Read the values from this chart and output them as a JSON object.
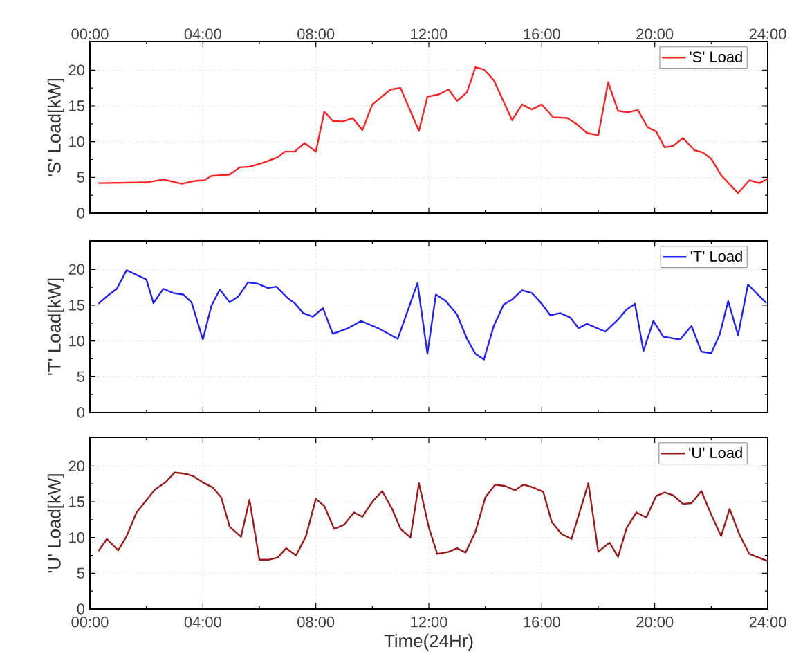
{
  "chart_data": [
    {
      "type": "line",
      "ylabel": "'S' Load[kW]",
      "legend": "top right",
      "grid": true,
      "tick_labels": "y",
      "xlim": [
        0,
        24
      ],
      "x2lim": [
        0,
        24
      ],
      "x2ticks": [
        {
          "value": 0,
          "label": "00:00"
        },
        {
          "value": 4,
          "label": "04:00"
        },
        {
          "value": 8,
          "label": "08:00"
        },
        {
          "value": 12,
          "label": "12:00"
        },
        {
          "value": 16,
          "label": "16:00"
        },
        {
          "value": 20,
          "label": "20:00"
        },
        {
          "value": 24,
          "label": "24:00"
        }
      ],
      "ylim": [
        0,
        24
      ],
      "yticks": [
        0,
        5,
        10,
        15,
        20
      ],
      "x": [
        0.3,
        2.0,
        2.6,
        3.25,
        3.7,
        4.05,
        4.3,
        4.95,
        5.3,
        5.65,
        6.1,
        6.65,
        6.9,
        7.25,
        7.6,
        8.0,
        8.3,
        8.6,
        8.95,
        9.3,
        9.65,
        10.0,
        10.65,
        11.0,
        11.65,
        11.95,
        12.35,
        12.7,
        13.0,
        13.35,
        13.65,
        13.95,
        14.3,
        14.95,
        15.3,
        15.65,
        16.0,
        16.4,
        16.9,
        17.25,
        17.6,
        18.0,
        18.35,
        18.7,
        19.05,
        19.4,
        19.75,
        20.05,
        20.35,
        20.65,
        21.0,
        21.4,
        21.7,
        22.0,
        22.35,
        22.95,
        23.35,
        23.7,
        24.0
      ],
      "series": [
        {
          "name": "'S' Load",
          "color": "#ff2020",
          "values": [
            4.2,
            4.3,
            4.7,
            4.1,
            4.5,
            4.6,
            5.2,
            5.4,
            6.4,
            6.5,
            7.0,
            7.8,
            8.6,
            8.6,
            9.8,
            8.6,
            14.2,
            12.9,
            12.8,
            13.3,
            11.6,
            15.2,
            17.3,
            17.5,
            11.5,
            16.3,
            16.6,
            17.3,
            15.7,
            16.9,
            20.4,
            20.1,
            18.6,
            13.0,
            15.2,
            14.5,
            15.2,
            13.4,
            13.3,
            12.4,
            11.2,
            10.9,
            18.3,
            14.3,
            14.1,
            14.4,
            12.0,
            11.4,
            9.2,
            9.4,
            10.5,
            8.8,
            8.5,
            7.6,
            5.3,
            2.8,
            4.6,
            4.2,
            4.8
          ]
        }
      ]
    },
    {
      "type": "line",
      "ylabel": "'T' Load[kW]",
      "legend": "top right",
      "grid": true,
      "tick_labels": "y",
      "xlim": [
        0,
        24
      ],
      "xticks": [
        {
          "value": 0,
          "label": null
        },
        {
          "value": 4,
          "label": null
        },
        {
          "value": 8,
          "label": null
        },
        {
          "value": 12,
          "label": null
        },
        {
          "value": 16,
          "label": null
        },
        {
          "value": 20,
          "label": null
        },
        {
          "value": 24,
          "label": null
        }
      ],
      "ylim": [
        0,
        24
      ],
      "yticks": [
        0,
        5,
        10,
        15,
        20
      ],
      "x": [
        0.3,
        0.65,
        0.95,
        1.3,
        2.0,
        2.25,
        2.6,
        2.95,
        3.3,
        3.6,
        4.0,
        4.3,
        4.6,
        4.95,
        5.25,
        5.6,
        5.95,
        6.3,
        6.6,
        7.0,
        7.25,
        7.55,
        7.9,
        8.25,
        8.6,
        9.15,
        9.6,
        10.2,
        10.9,
        11.6,
        11.95,
        12.25,
        12.6,
        13.0,
        13.35,
        13.65,
        13.95,
        14.3,
        14.65,
        14.95,
        15.3,
        15.65,
        16.0,
        16.3,
        16.65,
        17.0,
        17.3,
        17.6,
        18.25,
        18.7,
        19.0,
        19.3,
        19.6,
        19.95,
        20.3,
        20.9,
        21.3,
        21.65,
        22.0,
        22.3,
        22.6,
        22.95,
        23.3,
        23.95
      ],
      "series": [
        {
          "name": "'T' Load",
          "color": "#2020ff",
          "values": [
            15.2,
            16.4,
            17.3,
            19.9,
            18.6,
            15.3,
            17.3,
            16.7,
            16.5,
            15.4,
            10.2,
            14.9,
            17.2,
            15.4,
            16.2,
            18.2,
            18.0,
            17.4,
            17.6,
            16.0,
            15.3,
            13.9,
            13.4,
            14.6,
            11.0,
            11.8,
            12.8,
            11.8,
            10.3,
            18.1,
            8.2,
            16.5,
            15.6,
            13.7,
            10.3,
            8.2,
            7.4,
            12.1,
            15.1,
            15.8,
            17.1,
            16.7,
            15.2,
            13.6,
            13.9,
            13.3,
            11.8,
            12.4,
            11.3,
            13.0,
            14.4,
            15.2,
            8.6,
            12.8,
            10.6,
            10.2,
            12.1,
            8.5,
            8.3,
            10.9,
            15.6,
            10.8,
            17.9,
            15.3
          ]
        }
      ]
    },
    {
      "type": "line",
      "ylabel": "'U' Load[kW]",
      "xlabel": "Time(24Hr)",
      "legend": "top right",
      "grid": true,
      "xlim": [
        0,
        24
      ],
      "xticks": [
        {
          "value": 0,
          "label": "00:00"
        },
        {
          "value": 4,
          "label": "04:00"
        },
        {
          "value": 8,
          "label": "08:00"
        },
        {
          "value": 12,
          "label": "12:00"
        },
        {
          "value": 16,
          "label": "16:00"
        },
        {
          "value": 20,
          "label": "20:00"
        },
        {
          "value": 24,
          "label": "24:00"
        }
      ],
      "ylim": [
        0,
        24
      ],
      "yticks": [
        0,
        5,
        10,
        15,
        20
      ],
      "x": [
        0.3,
        0.6,
        1.0,
        1.3,
        1.65,
        2.3,
        2.7,
        3.0,
        3.4,
        3.65,
        4.0,
        4.35,
        4.65,
        4.95,
        5.35,
        5.65,
        6.0,
        6.35,
        6.65,
        6.95,
        7.3,
        7.65,
        8.0,
        8.3,
        8.65,
        9.0,
        9.35,
        9.65,
        10.0,
        10.35,
        10.7,
        11.0,
        11.35,
        11.65,
        12.0,
        12.3,
        12.7,
        13.0,
        13.3,
        13.65,
        14.0,
        14.35,
        14.7,
        15.05,
        15.35,
        15.7,
        16.05,
        16.35,
        16.7,
        17.05,
        17.35,
        17.65,
        18.0,
        18.4,
        18.7,
        19.0,
        19.35,
        19.7,
        20.05,
        20.35,
        20.65,
        21.0,
        21.3,
        21.65,
        22.0,
        22.35,
        22.65,
        23.0,
        23.35,
        24.0
      ],
      "series": [
        {
          "name": "'U' Load",
          "color": "#a01818",
          "values": [
            8.1,
            9.8,
            8.2,
            10.2,
            13.5,
            16.7,
            17.8,
            19.1,
            18.9,
            18.6,
            17.7,
            17.0,
            15.6,
            11.5,
            10.1,
            15.3,
            6.9,
            6.9,
            7.2,
            8.5,
            7.5,
            10.2,
            15.4,
            14.4,
            11.2,
            11.8,
            13.5,
            12.9,
            15.0,
            16.5,
            14.0,
            11.2,
            10.0,
            17.6,
            11.4,
            7.7,
            8.0,
            8.5,
            7.9,
            10.8,
            15.6,
            17.4,
            17.2,
            16.6,
            17.4,
            17.0,
            16.4,
            12.2,
            10.5,
            9.8,
            13.7,
            17.6,
            8.0,
            9.3,
            7.3,
            11.3,
            13.5,
            12.8,
            15.8,
            16.3,
            15.9,
            14.7,
            14.8,
            16.5,
            13.2,
            10.2,
            14.0,
            10.4,
            7.7,
            6.7
          ]
        }
      ]
    }
  ]
}
